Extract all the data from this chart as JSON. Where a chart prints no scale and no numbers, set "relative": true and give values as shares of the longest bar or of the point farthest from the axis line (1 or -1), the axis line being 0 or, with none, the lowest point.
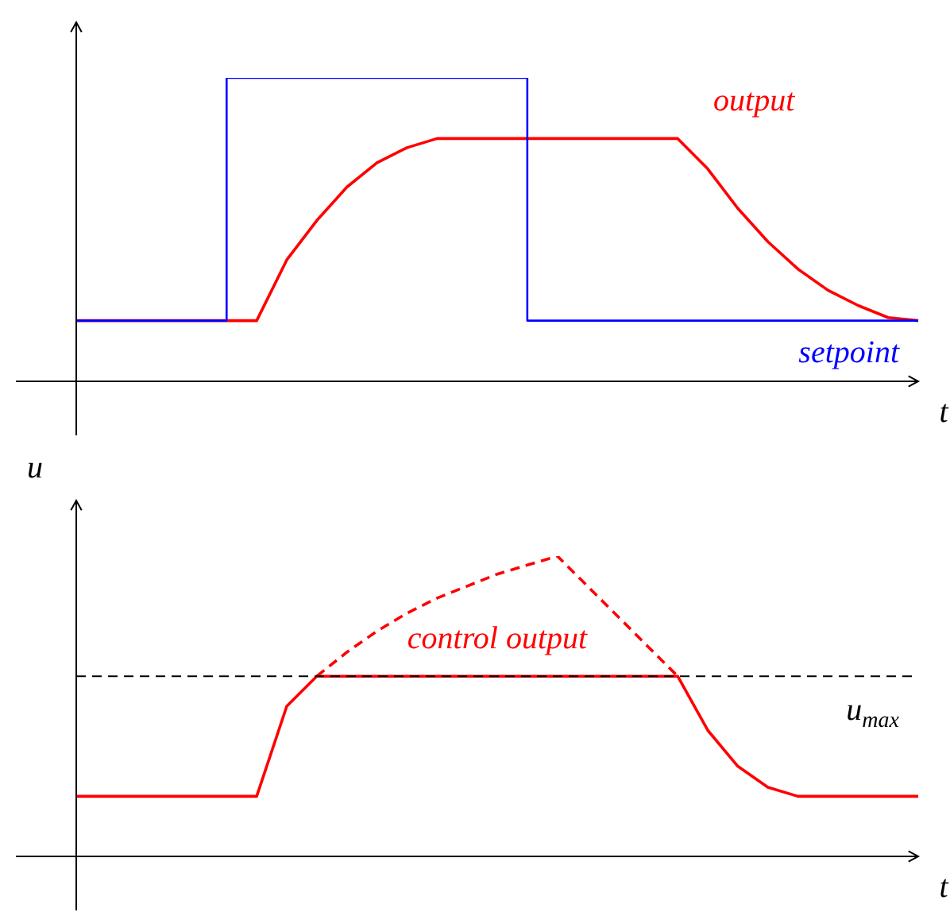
{
  "chart_data": [
    {
      "type": "line",
      "relative": true,
      "xlabel": "t",
      "tick_labels": false,
      "grid": false,
      "legend": false,
      "categories": [
        null,
        null,
        null,
        null,
        null,
        null,
        null,
        null,
        null,
        null,
        null,
        null,
        null,
        null,
        null,
        null,
        null,
        null,
        null,
        null,
        null,
        null,
        null,
        null,
        null,
        null,
        null,
        null,
        null
      ],
      "series": [
        {
          "name": "output",
          "color": "#ff0000",
          "values": [
            0.2,
            0.2,
            0.2,
            0.2,
            0.2,
            0.2,
            0.2,
            0.4,
            0.53,
            0.64,
            0.72,
            0.77,
            0.8,
            0.8,
            0.8,
            0.8,
            0.8,
            0.8,
            0.8,
            0.8,
            0.8,
            0.7,
            0.57,
            0.46,
            0.37,
            0.3,
            0.25,
            0.21,
            0.2
          ]
        },
        {
          "name": "setpoint",
          "type": "step",
          "color": "#0000ff",
          "values": [
            0.2,
            0.2,
            0.2,
            0.2,
            0.2,
            0.2,
            1,
            1,
            1,
            1,
            1,
            1,
            1,
            1,
            1,
            1,
            0.2,
            0.2,
            0.2,
            0.2,
            0.2,
            0.2,
            0.2,
            0.2,
            0.2,
            0.2,
            0.2,
            0.2,
            0.2
          ]
        }
      ]
    },
    {
      "type": "line",
      "relative": true,
      "xlabel": "t",
      "ylabel": "u",
      "tick_labels": false,
      "grid": false,
      "legend": false,
      "categories": [
        null,
        null,
        null,
        null,
        null,
        null,
        null,
        null,
        null,
        null,
        null,
        null,
        null,
        null,
        null,
        null,
        null,
        null,
        null,
        null,
        null,
        null,
        null,
        null,
        null,
        null,
        null,
        null,
        null
      ],
      "series": [
        {
          "name": "control output",
          "color": "#ff0000",
          "values": [
            0.2,
            0.2,
            0.2,
            0.2,
            0.2,
            0.2,
            0.2,
            0.5,
            0.6,
            0.6,
            0.6,
            0.6,
            0.6,
            0.6,
            0.6,
            0.6,
            0.6,
            0.6,
            0.6,
            0.6,
            0.6,
            0.42,
            0.3,
            0.23,
            0.2,
            0.2,
            0.2,
            0.2,
            0.2
          ]
        },
        {
          "color": "#ff0000",
          "line_style": "dashed",
          "values": [
            null,
            null,
            null,
            null,
            null,
            null,
            null,
            null,
            0.6,
            0.68,
            0.75,
            0.81,
            0.86,
            0.9,
            0.94,
            0.97,
            1,
            0.9,
            0.8,
            0.7,
            0.6,
            null,
            null,
            null,
            null,
            null,
            null,
            null,
            null
          ]
        }
      ],
      "ref_lines": [
        {
          "axis": "y",
          "value": 0.6,
          "label": "u$_{max}$",
          "color": "#000000",
          "line_style": "dashed"
        }
      ]
    }
  ]
}
